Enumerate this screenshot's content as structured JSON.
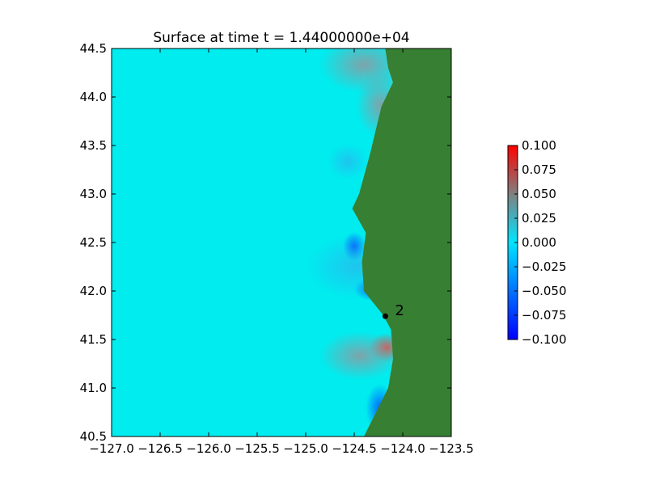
{
  "chart_data": {
    "type": "heatmap",
    "title": "Surface at time t = 1.44000000e+04",
    "xlabel": "",
    "ylabel": "",
    "xlim": [
      -127.0,
      -123.5
    ],
    "ylim": [
      40.5,
      44.5
    ],
    "x_ticks": [
      "−127.0",
      "−126.5",
      "−126.0",
      "−125.5",
      "−125.0",
      "−124.5",
      "−124.0",
      "−123.5"
    ],
    "x_tick_values": [
      -127.0,
      -126.5,
      -126.0,
      -125.5,
      -125.0,
      -124.5,
      -124.0,
      -123.5
    ],
    "y_ticks": [
      "40.5",
      "41.0",
      "41.5",
      "42.0",
      "42.5",
      "43.0",
      "43.5",
      "44.0",
      "44.5"
    ],
    "y_tick_values": [
      40.5,
      41.0,
      41.5,
      42.0,
      42.5,
      43.0,
      43.5,
      44.0,
      44.5
    ],
    "colorbar": {
      "range": [
        -0.1,
        0.1
      ],
      "ticks": [
        "0.100",
        "0.075",
        "0.050",
        "0.025",
        "0.000",
        "−0.025",
        "−0.050",
        "−0.075",
        "−0.100"
      ],
      "tick_values": [
        0.1,
        0.075,
        0.05,
        0.025,
        0.0,
        -0.025,
        -0.05,
        -0.075,
        -0.1
      ]
    },
    "gauge": {
      "label": "2",
      "lon": -124.18,
      "lat": 41.74
    },
    "coastline": [
      [
        -124.18,
        44.5
      ],
      [
        -124.15,
        44.3
      ],
      [
        -124.1,
        44.15
      ],
      [
        -124.22,
        43.9
      ],
      [
        -124.34,
        43.4
      ],
      [
        -124.45,
        43.0
      ],
      [
        -124.52,
        42.85
      ],
      [
        -124.38,
        42.6
      ],
      [
        -124.42,
        42.3
      ],
      [
        -124.4,
        42.0
      ],
      [
        -124.2,
        41.75
      ],
      [
        -124.12,
        41.6
      ],
      [
        -124.1,
        41.3
      ],
      [
        -124.15,
        41.0
      ],
      [
        -124.35,
        40.6
      ],
      [
        -124.4,
        40.5
      ]
    ],
    "colors": {
      "ocean": "#00ecef",
      "land": "#377f33",
      "lowland": "#8aa82b",
      "colorbar_stops": [
        "#0000ff",
        "#00e5ff",
        "#808080",
        "#ff0000"
      ]
    }
  }
}
